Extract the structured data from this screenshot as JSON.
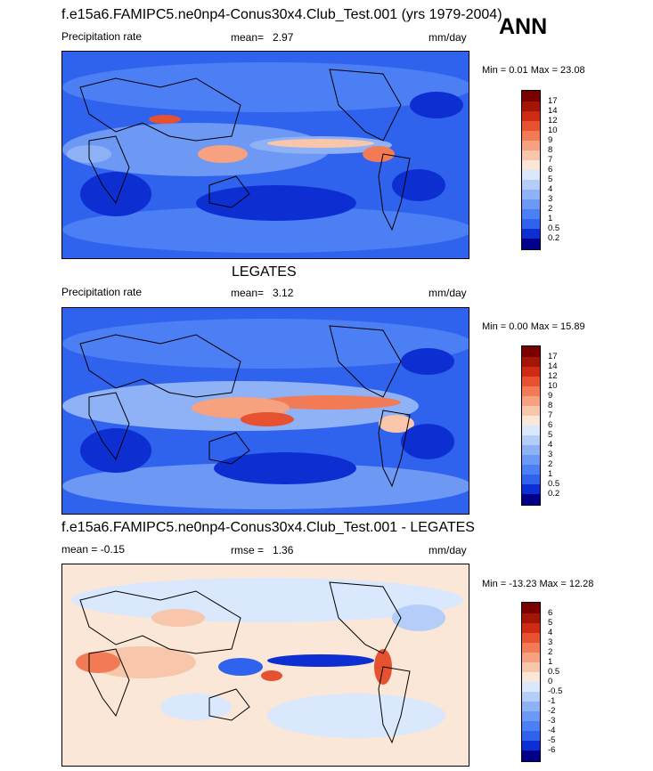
{
  "season": "ANN",
  "colors": {
    "precip_scale": [
      "#00008a",
      "#0d2fd2",
      "#2f63ee",
      "#4d7ff4",
      "#6d98f4",
      "#8fb2f6",
      "#b4cef9",
      "#d9e8fc",
      "#fbe7d7",
      "#f8c6aa",
      "#f6a17f",
      "#f27a55",
      "#e6512f",
      "#cf2b12",
      "#a31505",
      "#7a0000"
    ],
    "diff_scale": [
      "#00008a",
      "#0d2fd2",
      "#2f63ee",
      "#4d7ff4",
      "#6d98f4",
      "#8fb2f6",
      "#b4cef9",
      "#d9e8fc",
      "#fbe7d7",
      "#f8c6aa",
      "#f6a17f",
      "#f27a55",
      "#e6512f",
      "#cf2b12",
      "#a31505",
      "#7a0000"
    ]
  },
  "panels": [
    {
      "title": "f.e15a6.FAMIPC5.ne0np4-Conus30x4.Club_Test.001 (yrs 1979-2004)",
      "left_label": "Precipitation rate",
      "mean_label": "mean=",
      "mean_value": "2.97",
      "units": "mm/day",
      "minmax": "Min =   0.01 Max =  23.08",
      "colorbar_labels": [
        "17",
        "14",
        "12",
        "10",
        "9",
        "8",
        "7",
        "6",
        "5",
        "4",
        "3",
        "2",
        "1",
        "0.5",
        "0.2"
      ]
    },
    {
      "title": "LEGATES",
      "left_label": "Precipitation rate",
      "mean_label": "mean=",
      "mean_value": "3.12",
      "units": "mm/day",
      "minmax": "Min =   0.00 Max =  15.89",
      "colorbar_labels": [
        "17",
        "14",
        "12",
        "10",
        "9",
        "8",
        "7",
        "6",
        "5",
        "4",
        "3",
        "2",
        "1",
        "0.5",
        "0.2"
      ]
    },
    {
      "title": "f.e15a6.FAMIPC5.ne0np4-Conus30x4.Club_Test.001 - LEGATES",
      "left_label": "mean =  -0.15",
      "mean_label": "rmse =",
      "mean_value": "1.36",
      "units": "mm/day",
      "minmax": "Min = -13.23 Max =  12.28",
      "colorbar_labels": [
        "6",
        "5",
        "4",
        "3",
        "2",
        "1",
        "0.5",
        "0",
        "-0.5",
        "-1",
        "-2",
        "-3",
        "-4",
        "-5",
        "-6"
      ]
    }
  ]
}
